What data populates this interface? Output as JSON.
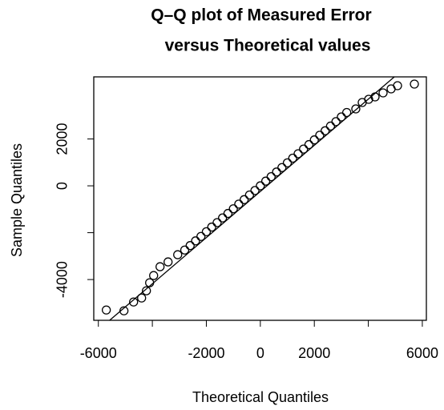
{
  "chart_data": {
    "type": "scatter",
    "title": [
      "Q–Q plot of Measured Error",
      "versus Theoretical values"
    ],
    "xlabel": "Theoretical Quantiles",
    "ylabel": "Sample Quantiles",
    "xlim": [
      -6170,
      6150
    ],
    "ylim": [
      -5740,
      4650
    ],
    "xticks": [
      -6000,
      -2000,
      0,
      2000,
      6000
    ],
    "xminor_ticks": [
      -4000,
      4000
    ],
    "yticks": [
      -4000,
      0,
      2000
    ],
    "yminor_ticks": [
      -2000
    ],
    "color": "#000000",
    "x": [
      -5706,
      -5052,
      -4695,
      -4398,
      -4220,
      -4101,
      -3952,
      -3715,
      -3418,
      -3061,
      -2800,
      -2600,
      -2400,
      -2200,
      -2000,
      -1800,
      -1600,
      -1400,
      -1200,
      -1000,
      -800,
      -600,
      -400,
      -200,
      0,
      200,
      400,
      600,
      800,
      1000,
      1200,
      1400,
      1600,
      1800,
      2000,
      2200,
      2400,
      2600,
      2800,
      3000,
      3200,
      3536,
      3774,
      4012,
      4250,
      4547,
      4844,
      5082,
      5706
    ],
    "values": [
      -5300,
      -5334,
      -4958,
      -4787,
      -4479,
      -4137,
      -3829,
      -3453,
      -3248,
      -2940,
      -2740,
      -2550,
      -2350,
      -2160,
      -1960,
      -1760,
      -1570,
      -1370,
      -1180,
      -980,
      -780,
      -590,
      -390,
      -200,
      0,
      200,
      390,
      590,
      780,
      980,
      1180,
      1370,
      1570,
      1760,
      1960,
      2160,
      2350,
      2550,
      2740,
      2940,
      3130,
      3282,
      3556,
      3692,
      3795,
      3966,
      4137,
      4274,
      4342
    ],
    "reference_line": {
      "x": [
        -5587,
        4963
      ],
      "y": [
        -5744,
        4650
      ]
    }
  }
}
